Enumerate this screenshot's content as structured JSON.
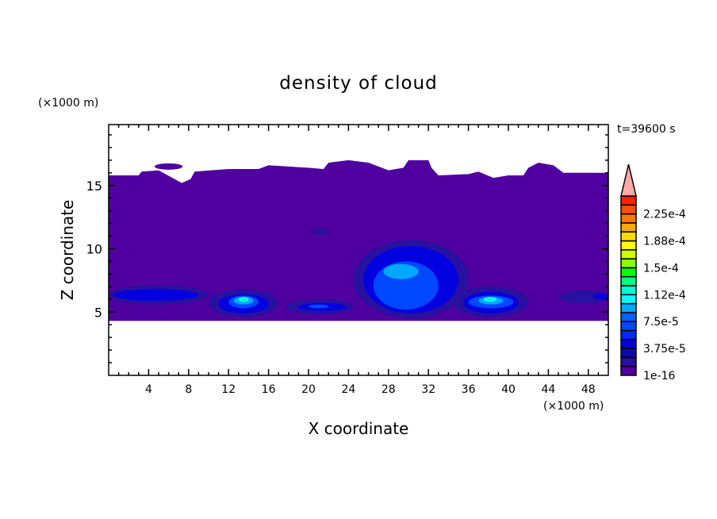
{
  "chart_data": {
    "type": "heatmap",
    "subtype": "filled-contour",
    "title": "density of cloud",
    "xlabel": "X coordinate",
    "ylabel": "Z coordinate",
    "x_unit": "(×1000 m)",
    "y_unit": "(×1000 m)",
    "time_label": "t=39600 s",
    "xlim": [
      0,
      50
    ],
    "ylim": [
      0,
      20
    ],
    "x_ticks": [
      4,
      8,
      12,
      16,
      20,
      24,
      28,
      32,
      36,
      40,
      44,
      48
    ],
    "y_ticks": [
      5,
      10,
      15
    ],
    "grid": false,
    "colorbar": {
      "position": "right",
      "levels": [
        1e-16,
        1.25e-05,
        2.5e-05,
        3.75e-05,
        5e-05,
        6.25e-05,
        7.5e-05,
        8.75e-05,
        0.0001,
        0.000112,
        0.000125,
        0.000138,
        0.00015,
        0.000162,
        0.000175,
        0.000188,
        0.0002,
        0.000212,
        0.000225,
        0.000238,
        0.00025
      ],
      "tick_labels": [
        "1e-16",
        "3.75e-5",
        "7.5e-5",
        "1.12e-4",
        "1.5e-4",
        "1.88e-4",
        "2.25e-4"
      ],
      "colors": [
        "#5000a0",
        "#2810a0",
        "#1008a8",
        "#0000e0",
        "#0028ff",
        "#0048ff",
        "#0064ff",
        "#00a8ff",
        "#00ffff",
        "#00ffd0",
        "#00ff80",
        "#00ff00",
        "#88ff00",
        "#ccff00",
        "#ffff00",
        "#ffd800",
        "#ffa800",
        "#ff7800",
        "#ff5000",
        "#ff2000"
      ],
      "overflow_color": "#ffaaaa"
    },
    "cloud_layer_outline": [
      [
        0,
        15.8
      ],
      [
        3,
        15.8
      ],
      [
        3.3,
        16.1
      ],
      [
        5,
        16.2
      ],
      [
        7.3,
        15.2
      ],
      [
        8.2,
        15.5
      ],
      [
        8.6,
        16.1
      ],
      [
        12,
        16.3
      ],
      [
        15,
        16.3
      ],
      [
        16,
        16.6
      ],
      [
        20,
        16.4
      ],
      [
        21.5,
        16.3
      ],
      [
        22,
        16.8
      ],
      [
        24,
        17
      ],
      [
        26,
        16.8
      ],
      [
        28,
        16.2
      ],
      [
        29.5,
        16.4
      ],
      [
        30,
        17
      ],
      [
        32,
        17
      ],
      [
        32.3,
        16.4
      ],
      [
        33,
        15.8
      ],
      [
        36,
        15.9
      ],
      [
        37,
        16.1
      ],
      [
        38.5,
        15.6
      ],
      [
        40,
        15.8
      ],
      [
        41.5,
        15.8
      ],
      [
        42,
        16.4
      ],
      [
        43,
        16.8
      ],
      [
        44.5,
        16.6
      ],
      [
        45.5,
        16
      ],
      [
        50,
        16
      ],
      [
        50,
        4.3
      ],
      [
        0,
        4.3
      ]
    ],
    "regions": [
      {
        "level": 1,
        "x": [
          0,
          10
        ],
        "z": [
          5.6,
          7.1
        ]
      },
      {
        "level": 1,
        "x": [
          10,
          17
        ],
        "z": [
          4.6,
          6.8
        ]
      },
      {
        "level": 1,
        "x": [
          17.8,
          24.5
        ],
        "z": [
          4.8,
          6.0
        ]
      },
      {
        "level": 1,
        "x": [
          24.5,
          36
        ],
        "z": [
          4.5,
          10.7
        ]
      },
      {
        "level": 1,
        "x": [
          34.5,
          42
        ],
        "z": [
          4.6,
          7.0
        ]
      },
      {
        "level": 1,
        "x": [
          45,
          50
        ],
        "z": [
          5.7,
          6.7
        ]
      },
      {
        "level": 1,
        "x": [
          20.3,
          22
        ],
        "z": [
          11.1,
          11.6
        ]
      },
      {
        "level": 3,
        "x": [
          0.5,
          9
        ],
        "z": [
          5.9,
          6.8
        ]
      },
      {
        "level": 3,
        "x": [
          11,
          16
        ],
        "z": [
          4.9,
          6.4
        ]
      },
      {
        "level": 3,
        "x": [
          19,
          23.8
        ],
        "z": [
          5.1,
          5.7
        ]
      },
      {
        "level": 3,
        "x": [
          25.5,
          35
        ],
        "z": [
          4.9,
          10.2
        ]
      },
      {
        "level": 3,
        "x": [
          35.5,
          41
        ],
        "z": [
          4.9,
          6.6
        ]
      },
      {
        "level": 3,
        "x": [
          48.5,
          50
        ],
        "z": [
          6,
          6.5
        ]
      },
      {
        "level": 5,
        "x": [
          12,
          15
        ],
        "z": [
          5.3,
          6.3
        ]
      },
      {
        "level": 5,
        "x": [
          20,
          22
        ],
        "z": [
          5.3,
          5.6
        ]
      },
      {
        "level": 5,
        "x": [
          26.5,
          33
        ],
        "z": [
          5.2,
          9
        ]
      },
      {
        "level": 5,
        "x": [
          36,
          40.5
        ],
        "z": [
          5.3,
          6.3
        ]
      },
      {
        "level": 7,
        "x": [
          12.5,
          14.5
        ],
        "z": [
          5.6,
          6.2
        ]
      },
      {
        "level": 7,
        "x": [
          27.5,
          31
        ],
        "z": [
          7.6,
          8.8
        ]
      },
      {
        "level": 7,
        "x": [
          37,
          39.5
        ],
        "z": [
          5.6,
          6.2
        ]
      },
      {
        "level": 8,
        "x": [
          13,
          14
        ],
        "z": [
          5.8,
          6.2
        ]
      },
      {
        "level": 8,
        "x": [
          37.5,
          38.8
        ],
        "z": [
          5.8,
          6.2
        ]
      },
      {
        "level": 10,
        "x": [
          13.3,
          13.7
        ],
        "z": [
          5.9,
          6.1
        ]
      },
      {
        "level": 10,
        "x": [
          38,
          38.3
        ],
        "z": [
          5.9,
          6.1
        ]
      }
    ]
  }
}
